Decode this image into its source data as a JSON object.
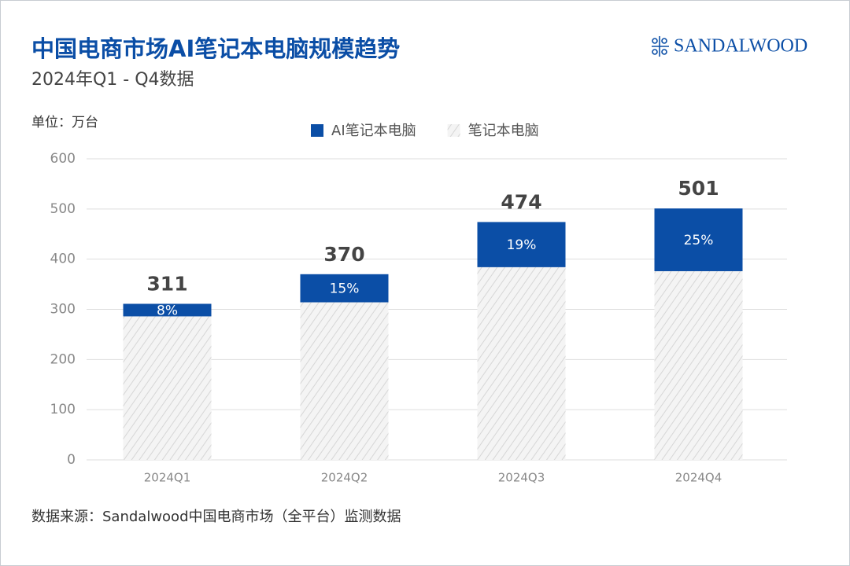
{
  "brand": "SANDALWOOD",
  "chart_data": {
    "type": "bar",
    "stacked": true,
    "title": "中国电商市场AI笔记本电脑规模趋势",
    "subtitle": "2024年Q1 - Q4数据",
    "unit_label": "单位：万台",
    "source": "数据来源：Sandalwood中国电商市场（全平台）监测数据",
    "categories": [
      "2024Q1",
      "2024Q2",
      "2024Q3",
      "2024Q4"
    ],
    "series": [
      {
        "name": "AI笔记本电脑",
        "color": "#0b4ea6",
        "values": [
          25,
          56,
          90,
          125
        ]
      },
      {
        "name": "笔记本电脑",
        "color": "#f2f2f2",
        "hatch": true,
        "values": [
          286,
          314,
          384,
          376
        ]
      }
    ],
    "totals": [
      311,
      370,
      474,
      501
    ],
    "ai_share": {
      "values": [
        8,
        15,
        19,
        25
      ],
      "value_labels": [
        "8%",
        "15%",
        "19%",
        "25%"
      ]
    },
    "ylim": [
      0,
      600
    ],
    "yticks": [
      0,
      100,
      200,
      300,
      400,
      500,
      600
    ],
    "grid": true,
    "legend": "top"
  }
}
